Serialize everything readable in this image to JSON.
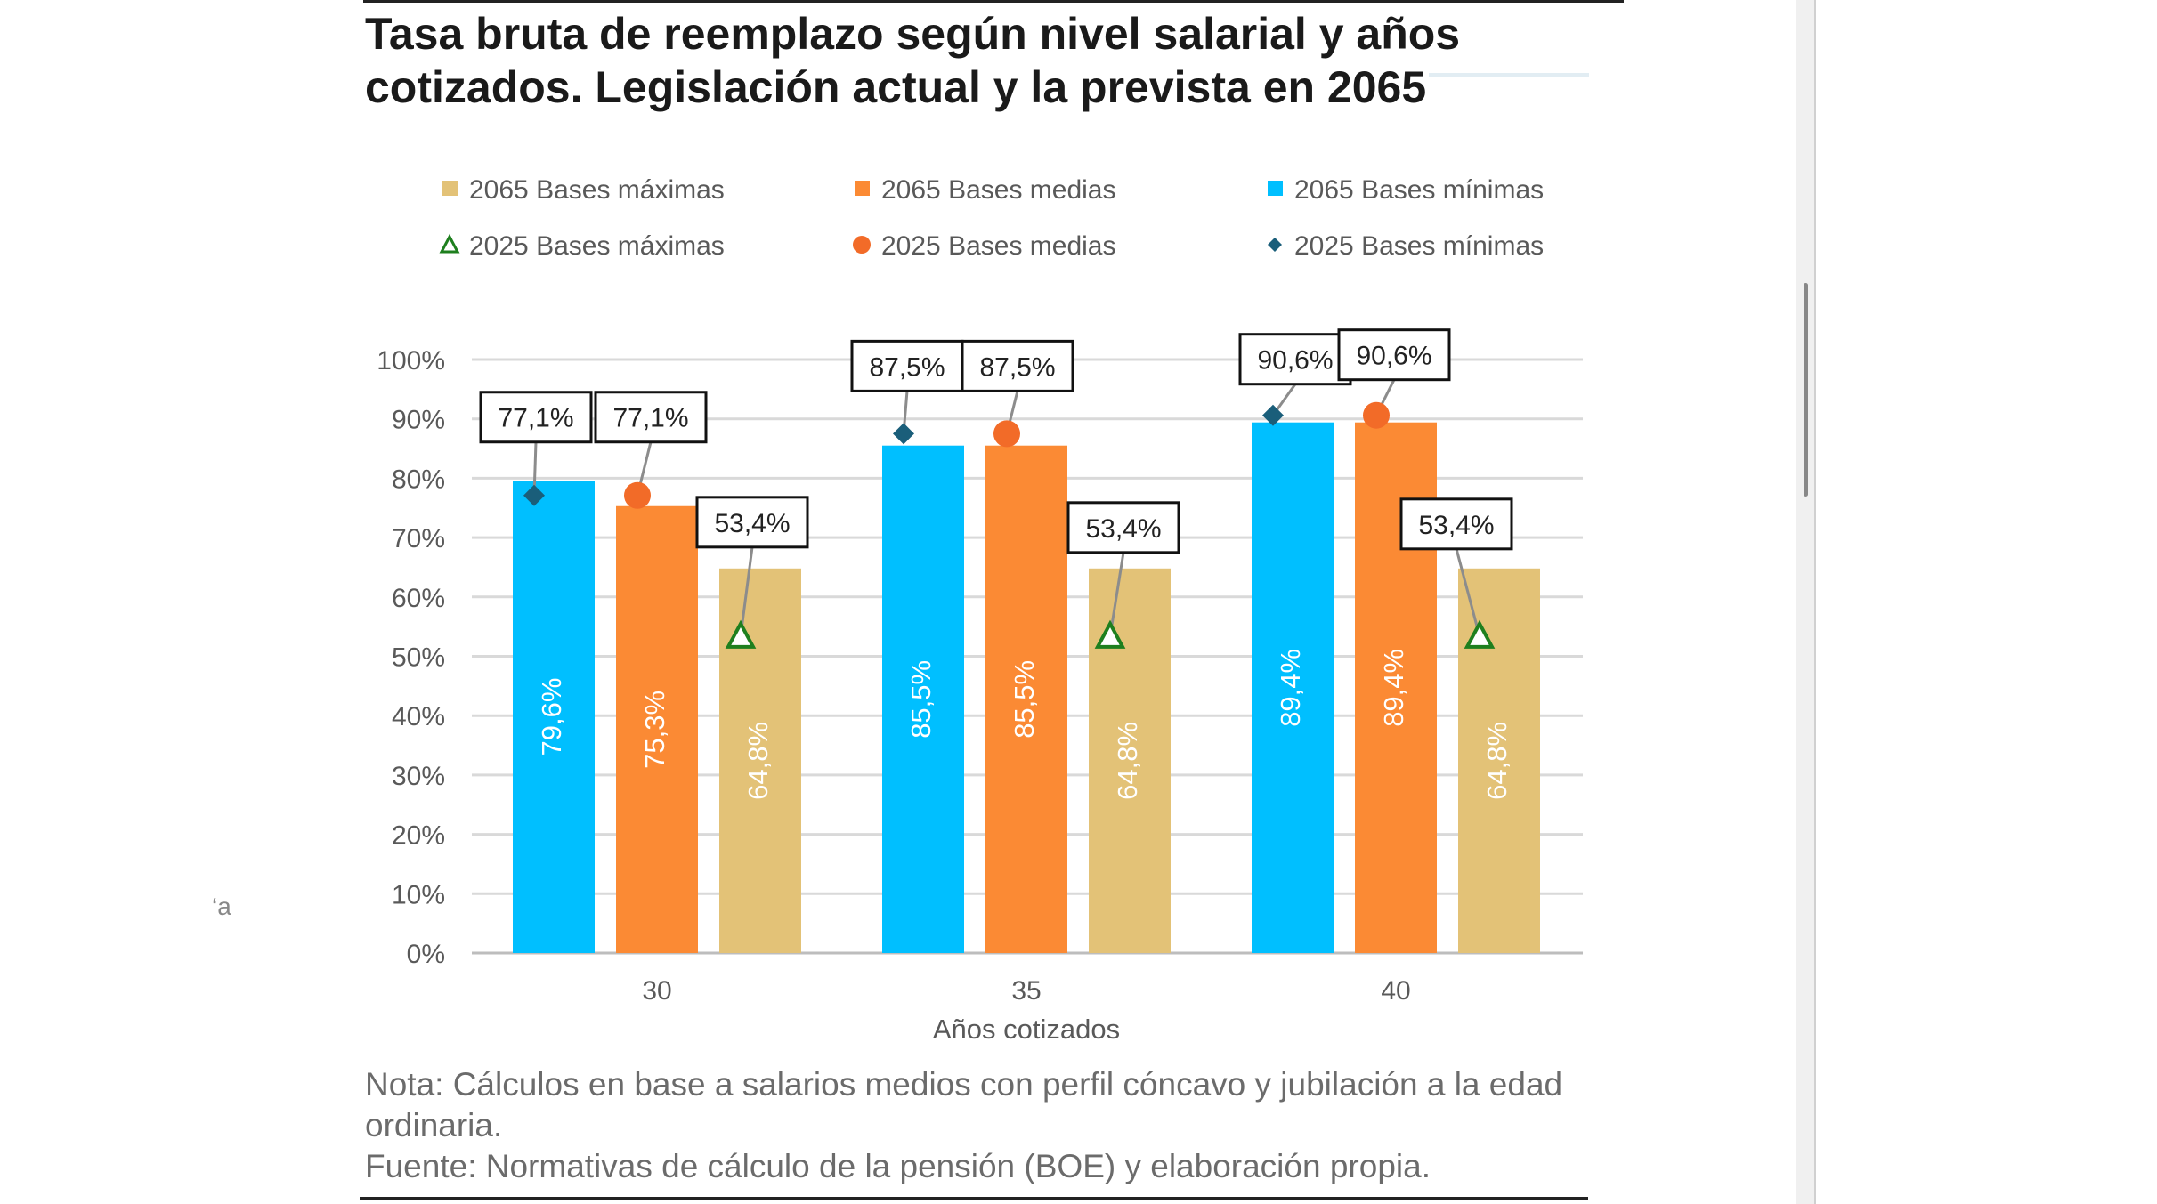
{
  "title_line1": "Tasa bruta de reemplazo según nivel salarial y años",
  "title_line2": "cotizados. Legislación actual y la prevista en 2065",
  "stray_text": "‘a",
  "note_line1": "Nota: Cálculos en base a salarios medios con perfil cóncavo y jubilación a la edad",
  "note_line2": "ordinaria.",
  "source_line": "Fuente: Normativas de cálculo de la pensión (BOE) y elaboración propia.",
  "chart_data": {
    "type": "bar",
    "title": "Tasa bruta de reemplazo según nivel salarial y años cotizados. Legislación actual y la prevista en 2065",
    "xlabel": "Años cotizados",
    "ylabel": "",
    "categories": [
      "30",
      "35",
      "40"
    ],
    "ylim": [
      0,
      100
    ],
    "yticks": [
      "0%",
      "10%",
      "20%",
      "30%",
      "40%",
      "50%",
      "60%",
      "70%",
      "80%",
      "90%",
      "100%"
    ],
    "grid": true,
    "legend_position": "top",
    "legend": [
      {
        "name": "2065 Bases máximas",
        "marker": "square",
        "color": "#e3c277"
      },
      {
        "name": "2065 Bases medias",
        "marker": "square",
        "color": "#fb8a34"
      },
      {
        "name": "2065 Bases mínimas",
        "marker": "square",
        "color": "#00bfff"
      },
      {
        "name": "2025 Bases máximas",
        "marker": "triangle",
        "color": "#1e7f1e"
      },
      {
        "name": "2025 Bases medias",
        "marker": "circle",
        "color": "#f26b28"
      },
      {
        "name": "2025 Bases mínimas",
        "marker": "diamond",
        "color": "#1a5e7a"
      }
    ],
    "series": [
      {
        "name": "2065 Bases mínimas",
        "kind": "bar",
        "color": "#00bfff",
        "values": [
          79.6,
          85.5,
          89.4
        ],
        "labels": [
          "79,6%",
          "85,5%",
          "89,4%"
        ]
      },
      {
        "name": "2065 Bases medias",
        "kind": "bar",
        "color": "#fb8a34",
        "values": [
          75.3,
          85.5,
          89.4
        ],
        "labels": [
          "75,3%",
          "85,5%",
          "89,4%"
        ]
      },
      {
        "name": "2065 Bases máximas",
        "kind": "bar",
        "color": "#e3c277",
        "values": [
          64.8,
          64.8,
          64.8
        ],
        "labels": [
          "64,8%",
          "64,8%",
          "64,8%"
        ]
      },
      {
        "name": "2025 Bases mínimas",
        "kind": "marker",
        "marker": "diamond",
        "color": "#1a5e7a",
        "values": [
          77.1,
          87.5,
          90.6
        ],
        "labels": [
          "77,1%",
          "87,5%",
          "90,6%"
        ]
      },
      {
        "name": "2025 Bases medias",
        "kind": "marker",
        "marker": "circle",
        "color": "#f26b28",
        "values": [
          77.1,
          87.5,
          90.6
        ],
        "labels": [
          "77,1%",
          "87,5%",
          "90,6%"
        ]
      },
      {
        "name": "2025 Bases máximas",
        "kind": "marker",
        "marker": "triangle",
        "color": "#1e7f1e",
        "values": [
          53.4,
          53.4,
          53.4
        ],
        "labels": [
          "53,4%",
          "53,4%",
          "53,4%"
        ]
      }
    ]
  }
}
